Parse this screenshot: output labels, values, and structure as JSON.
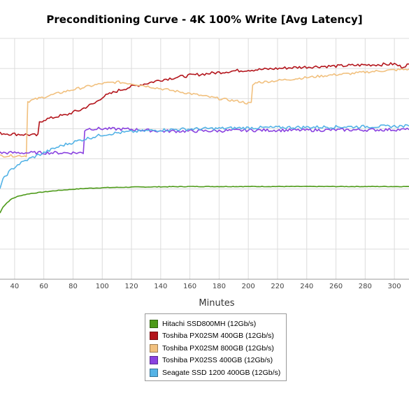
{
  "chart_data": {
    "type": "line",
    "title": "Preconditioning Curve - 4K 100% Write [Avg Latency]",
    "xlabel": "Minutes",
    "ylabel": "",
    "xlim": [
      30,
      310
    ],
    "ylim": [
      0,
      8
    ],
    "xticks": [
      40,
      60,
      80,
      100,
      120,
      140,
      160,
      180,
      200,
      220,
      240,
      260,
      280,
      300
    ],
    "grid": true,
    "legend_position": "bottom",
    "series": [
      {
        "name": "Hitachi SSD800MH (12Gb/s)",
        "color": "#4d9a19",
        "x": [
          30,
          32,
          35,
          38,
          42,
          46,
          50,
          55,
          60,
          70,
          80,
          90,
          100,
          110,
          120,
          140,
          160,
          180,
          200,
          220,
          240,
          260,
          280,
          300,
          310
        ],
        "y": [
          2.2,
          2.4,
          2.55,
          2.67,
          2.75,
          2.8,
          2.84,
          2.87,
          2.9,
          2.95,
          2.99,
          3.02,
          3.04,
          3.05,
          3.06,
          3.07,
          3.08,
          3.08,
          3.08,
          3.08,
          3.08,
          3.08,
          3.08,
          3.08,
          3.08
        ]
      },
      {
        "name": "Toshiba PX02SM 400GB (12Gb/s)",
        "color": "#b3141b",
        "x": [
          30,
          40,
          50,
          55,
          57,
          60,
          65,
          70,
          75,
          80,
          85,
          90,
          95,
          100,
          110,
          120,
          130,
          140,
          150,
          160,
          170,
          180,
          190,
          200,
          210,
          220,
          230,
          240,
          250,
          260,
          270,
          280,
          290,
          300,
          305,
          310
        ],
        "y": [
          4.85,
          4.82,
          4.8,
          4.78,
          5.2,
          5.3,
          5.35,
          5.42,
          5.45,
          5.55,
          5.62,
          5.75,
          5.85,
          6.05,
          6.25,
          6.4,
          6.5,
          6.62,
          6.7,
          6.77,
          6.82,
          6.87,
          6.92,
          6.95,
          6.97,
          7.0,
          7.03,
          7.05,
          7.07,
          7.08,
          7.1,
          7.12,
          7.13,
          7.15,
          7.05,
          7.15
        ]
      },
      {
        "name": "Toshiba PX02SM 800GB (12Gb/s)",
        "color": "#f1c07e",
        "x": [
          30,
          40,
          47,
          49,
          52,
          60,
          70,
          80,
          90,
          100,
          110,
          120,
          130,
          140,
          150,
          160,
          170,
          180,
          190,
          195,
          199,
          201,
          203,
          206,
          210,
          220,
          230,
          240,
          250,
          260,
          270,
          280,
          290,
          300,
          310
        ],
        "y": [
          4.1,
          4.1,
          4.1,
          5.9,
          5.95,
          6.05,
          6.18,
          6.3,
          6.4,
          6.5,
          6.55,
          6.5,
          6.42,
          6.33,
          6.25,
          6.17,
          6.08,
          6.0,
          5.93,
          5.9,
          5.85,
          5.85,
          6.45,
          6.55,
          6.55,
          6.6,
          6.65,
          6.7,
          6.75,
          6.8,
          6.83,
          6.88,
          6.92,
          6.95,
          6.98
        ]
      },
      {
        "name": "Toshiba PX02SS 400GB (12Gb/s)",
        "color": "#8a42e0",
        "x": [
          30,
          40,
          50,
          60,
          70,
          80,
          85,
          87,
          88,
          90,
          100,
          120,
          140,
          160,
          180,
          200,
          220,
          240,
          260,
          280,
          300,
          310
        ],
        "y": [
          4.2,
          4.2,
          4.2,
          4.2,
          4.2,
          4.2,
          4.2,
          4.2,
          4.95,
          5.0,
          5.0,
          4.98,
          4.92,
          4.92,
          4.93,
          4.95,
          4.95,
          4.95,
          4.96,
          4.96,
          4.97,
          4.97
        ]
      },
      {
        "name": "Seagate SSD 1200 400GB (12Gb/s)",
        "color": "#54b3e6",
        "x": [
          30,
          32,
          35,
          38,
          42,
          46,
          50,
          55,
          60,
          65,
          70,
          75,
          80,
          85,
          90,
          95,
          100,
          110,
          120,
          130,
          140,
          160,
          180,
          200,
          220,
          240,
          260,
          280,
          300,
          310
        ],
        "y": [
          3.05,
          3.3,
          3.5,
          3.65,
          3.8,
          3.9,
          4.0,
          4.1,
          4.2,
          4.3,
          4.4,
          4.48,
          4.55,
          4.62,
          4.68,
          4.74,
          4.8,
          4.86,
          4.9,
          4.93,
          4.96,
          4.99,
          5.01,
          5.03,
          5.04,
          5.05,
          5.06,
          5.07,
          5.08,
          5.09
        ]
      }
    ]
  }
}
